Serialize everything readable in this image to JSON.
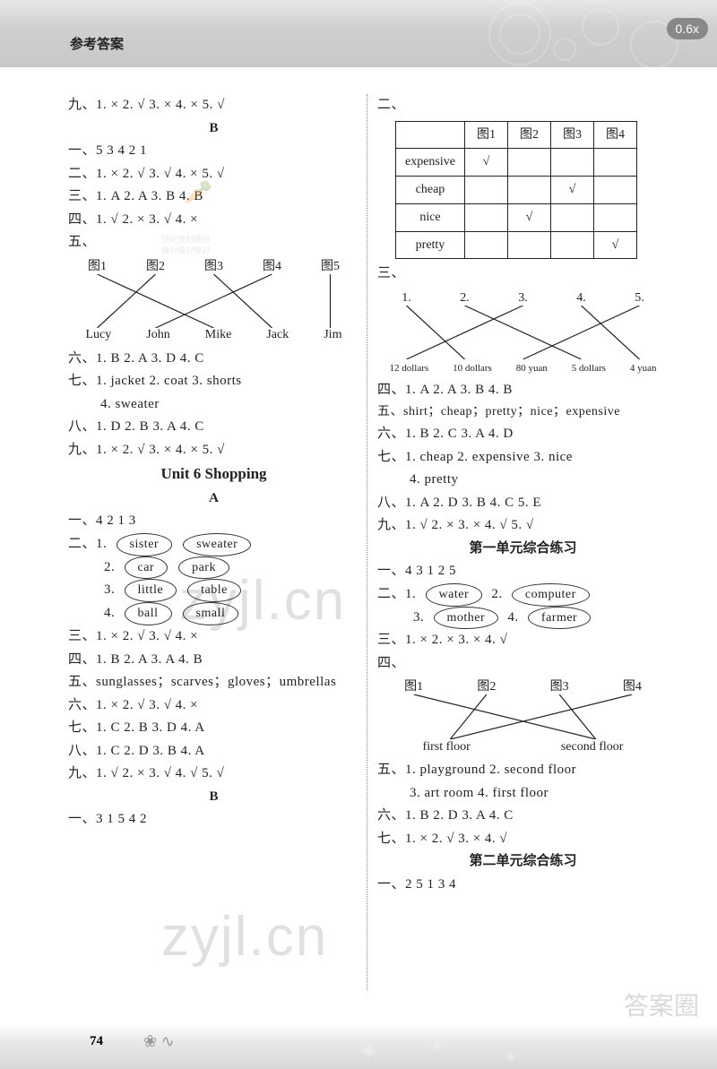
{
  "header": {
    "title": "参考答案",
    "zoom": "0.6x"
  },
  "page_number": "74",
  "left": {
    "l9": "九、1. ×  2. √  3. ×  4. ×  5. √",
    "secB": "B",
    "b1": "一、5  3  4  2  1",
    "b2": "二、1. ×  2. √  3. √  4. ×  5. √",
    "b3": "三、1. A  2. A  3. B  4. B",
    "b4": "四、1. √  2. ×  3. √  4. ×",
    "b5_label": "五、",
    "match1": {
      "top": [
        "图1",
        "图2",
        "图3",
        "图4",
        "图5"
      ],
      "bot": [
        "Lucy",
        "John",
        "Mike",
        "Jack",
        "Jim"
      ],
      "lines": [
        [
          0,
          2
        ],
        [
          1,
          0
        ],
        [
          2,
          3
        ],
        [
          3,
          1
        ],
        [
          4,
          4
        ]
      ]
    },
    "b6": "六、1. B  2. A  3. D  4. C",
    "b7": "七、1. jacket  2. coat  3. shorts",
    "b7b": "4. sweater",
    "b8": "八、1. D  2. B  3. A  4. C",
    "b9": "九、1. ×  2. √  3. ×  4. ×  5. √",
    "unit6": "Unit 6   Shopping",
    "secA": "A",
    "a1": "一、4  2  1  3",
    "a2": "二、1.",
    "ov": [
      [
        "sister",
        "sweater"
      ],
      [
        "car",
        "park"
      ],
      [
        "little",
        "table"
      ],
      [
        "ball",
        "small"
      ]
    ],
    "a3": "三、1. ×  2. √  3. √  4. ×",
    "a4": "四、1. B  2. A  3. A  4. B",
    "a5": "五、sunglasses；scarves；gloves；umbrellas",
    "a6": "六、1. ×  2. √  3. √  4. ×",
    "a7": "七、1. C  2. B  3. D  4. A",
    "a8": "八、1. C  2. D  3. B  4. A",
    "a9": "九、1. √  2. ×  3. √  4. √  5. √",
    "secB2": "B",
    "bb1": "一、3  1  5  4  2"
  },
  "right": {
    "r2_label": "二、",
    "table": {
      "cols": [
        "",
        "图1",
        "图2",
        "图3",
        "图4"
      ],
      "rows": [
        [
          "expensive",
          "√",
          "",
          "",
          ""
        ],
        [
          "cheap",
          "",
          "",
          "√",
          ""
        ],
        [
          "nice",
          "",
          "√",
          "",
          ""
        ],
        [
          "pretty",
          "",
          "",
          "",
          "√"
        ]
      ]
    },
    "r3_label": "三、",
    "match2": {
      "top": [
        "1.",
        "2.",
        "3.",
        "4.",
        "5."
      ],
      "bot": [
        "12 dollars",
        "10 dollars",
        "80 yuan",
        "5 dollars",
        "4 yuan"
      ],
      "lines": [
        [
          0,
          1
        ],
        [
          1,
          3
        ],
        [
          2,
          0
        ],
        [
          3,
          4
        ],
        [
          4,
          2
        ]
      ]
    },
    "r4": "四、1. A  2. A  3. B  4. B",
    "r5": "五、shirt；cheap；pretty；nice；expensive",
    "r6": "六、1. B  2. C  3. A  4. D",
    "r7": "七、1. cheap  2. expensive  3. nice",
    "r7b": "4. pretty",
    "r8": "八、1. A  2. D  3. B  4. C  5. E",
    "r9": "九、1. √  2. ×  3. ×  4. √  5. √",
    "unit1": "第一单元综合练习",
    "u1_1": "一、4  3  1  2  5",
    "u1_2a": "二、1.",
    "ov2": [
      [
        "water",
        "computer"
      ],
      [
        "mother",
        "farmer"
      ]
    ],
    "ov2_labels": [
      "2.",
      "3.",
      "4."
    ],
    "u1_3": "三、1. ×  2. ×  3. ×  4. √",
    "u1_4_label": "四、",
    "match3": {
      "top": [
        "图1",
        "图2",
        "图3",
        "图4"
      ],
      "bot": [
        "first floor",
        "second floor"
      ],
      "lines": [
        [
          0,
          1
        ],
        [
          1,
          0
        ],
        [
          2,
          1
        ],
        [
          3,
          0
        ]
      ]
    },
    "u1_5": "五、1. playground  2. second floor",
    "u1_5b": "3. art room  4. first floor",
    "u1_6": "六、1. B  2. D  3. A  4. C",
    "u1_7": "七、1. ×  2. √  3. ×  4. √",
    "unit2": "第二单元综合练习",
    "u2_1": "一、2  5  1  3  4"
  },
  "colors": {
    "text": "#222222",
    "header_bg": "#d0d0d0",
    "badge_bg": "#888888",
    "divider": "#888888",
    "watermark": "rgba(0,0,0,0.12)"
  }
}
